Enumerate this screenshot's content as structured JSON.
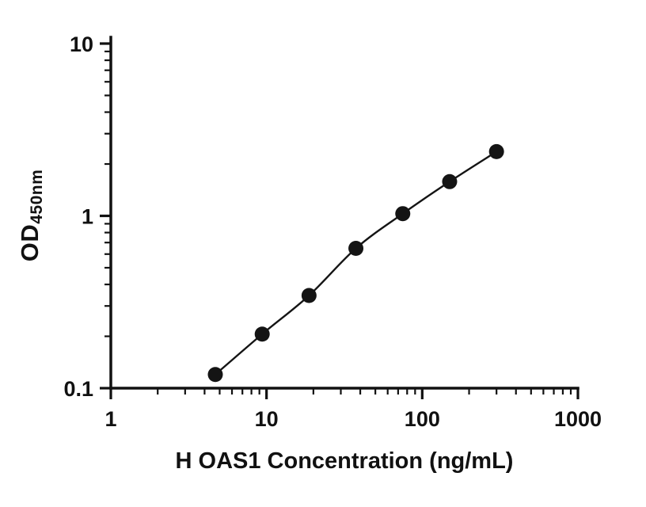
{
  "chart_data": {
    "type": "scatter",
    "x_scale": "log",
    "y_scale": "log",
    "x": [
      4.69,
      9.38,
      18.75,
      37.5,
      75,
      150,
      300
    ],
    "y": [
      0.12,
      0.206,
      0.345,
      0.648,
      1.03,
      1.58,
      2.36
    ],
    "xlabel": "H OAS1 Concentration (ng/mL)",
    "ylabel_main": "OD",
    "ylabel_sub": "450nm",
    "xlim": [
      1,
      1000
    ],
    "ylim": [
      0.1,
      10
    ],
    "x_ticks": [
      1,
      10,
      100,
      1000
    ],
    "x_tick_labels": [
      "1",
      "10",
      "100",
      "1000"
    ],
    "y_ticks": [
      0.1,
      1,
      10
    ],
    "y_tick_labels": [
      "0.1",
      "1",
      "10"
    ],
    "legend": "none",
    "grid": "off",
    "marker_color": "#141414",
    "line_color": "#141414",
    "axis_color": "#111111"
  }
}
